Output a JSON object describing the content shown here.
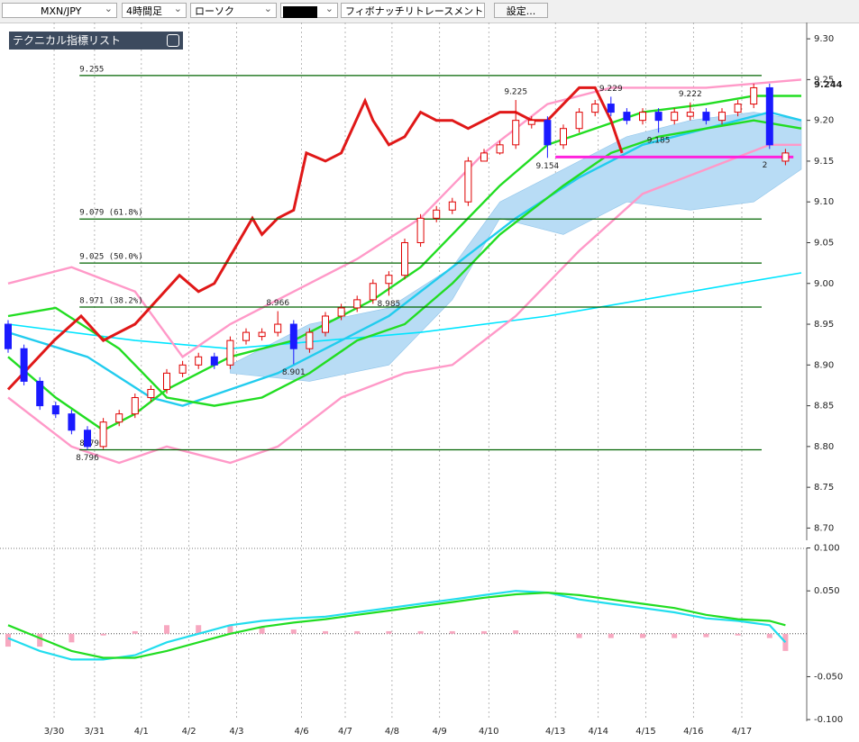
{
  "toolbar": {
    "symbol": "MXN/JPY",
    "timeframe": "4時間足",
    "chart_style": "ローソク",
    "tool": "フィボナッチリトレースメント",
    "settings": "設定..."
  },
  "indicator_panel": {
    "title": "テクニカル指標リスト"
  },
  "chart_data": [
    {
      "type": "candlestick",
      "xticks": [
        {
          "value": 2.9,
          "label": "3/30"
        },
        {
          "value": 5.45,
          "label": "3/31"
        },
        {
          "value": 8.4,
          "label": "4/1"
        },
        {
          "value": 11.4,
          "label": "4/2"
        },
        {
          "value": 14.4,
          "label": "4/3"
        },
        {
          "value": 18.5,
          "label": "4/6"
        },
        {
          "value": 21.25,
          "label": "4/7"
        },
        {
          "value": 24.2,
          "label": "4/8"
        },
        {
          "value": 27.2,
          "label": "4/9"
        },
        {
          "value": 30.3,
          "label": "4/10"
        },
        {
          "value": 34.5,
          "label": "4/13"
        },
        {
          "value": 37.2,
          "label": "4/14"
        },
        {
          "value": 40.2,
          "label": "4/15"
        },
        {
          "value": 43.2,
          "label": "4/16"
        },
        {
          "value": 46.25,
          "label": "4/17"
        }
      ],
      "ylim": [
        8.685,
        9.32
      ],
      "yticks": [
        {
          "value": 9.3,
          "label": "9.30"
        },
        9.25,
        {
          "value": 9.2,
          "label": "9.20"
        },
        9.15,
        {
          "value": 9.1,
          "label": "9.10"
        },
        9.05,
        {
          "value": 9.0,
          "label": "9.00"
        },
        8.95,
        {
          "value": 8.9,
          "label": "8.90"
        },
        8.85,
        {
          "value": 8.8,
          "label": "8.80"
        },
        8.75,
        {
          "value": 8.7,
          "label": "8.70"
        }
      ],
      "last_price": 9.244,
      "up_color": "#e00000",
      "down_color": "#1a1aff",
      "open": [
        8.95,
        8.92,
        8.88,
        8.85,
        8.84,
        8.82,
        8.8,
        8.83,
        8.84,
        8.86,
        8.87,
        8.89,
        8.9,
        8.91,
        8.9,
        8.93,
        8.935,
        8.94,
        8.95,
        8.92,
        8.94,
        8.96,
        8.97,
        8.98,
        9.0,
        9.01,
        9.05,
        9.08,
        9.09,
        9.1,
        9.15,
        9.16,
        9.17,
        9.195,
        9.2,
        9.17,
        9.19,
        9.21,
        9.22,
        9.21,
        9.2,
        9.21,
        9.2,
        9.205,
        9.21,
        9.2,
        9.21,
        9.22,
        9.24,
        9.15
      ],
      "high": [
        8.955,
        8.925,
        8.885,
        8.855,
        8.845,
        8.825,
        8.835,
        8.845,
        8.865,
        8.875,
        8.895,
        8.905,
        8.915,
        8.915,
        8.935,
        8.945,
        8.945,
        8.966,
        8.955,
        8.945,
        8.965,
        8.975,
        8.985,
        9.005,
        9.015,
        9.055,
        9.085,
        9.095,
        9.105,
        9.155,
        9.165,
        9.175,
        9.225,
        9.205,
        9.205,
        9.195,
        9.215,
        9.225,
        9.229,
        9.215,
        9.215,
        9.215,
        9.215,
        9.222,
        9.215,
        9.215,
        9.225,
        9.245,
        9.245,
        9.165
      ],
      "low": [
        8.915,
        8.875,
        8.845,
        8.835,
        8.815,
        8.796,
        8.797,
        8.825,
        8.835,
        8.855,
        8.865,
        8.885,
        8.895,
        8.895,
        8.895,
        8.925,
        8.93,
        8.935,
        8.901,
        8.915,
        8.935,
        8.955,
        8.965,
        8.975,
        8.985,
        9.005,
        9.045,
        9.075,
        9.085,
        9.095,
        9.155,
        9.158,
        9.165,
        9.19,
        9.154,
        9.165,
        9.185,
        9.205,
        9.205,
        9.195,
        9.195,
        9.185,
        9.195,
        9.2,
        9.195,
        9.195,
        9.205,
        9.215,
        9.165,
        9.145
      ],
      "close": [
        8.92,
        8.88,
        8.85,
        8.84,
        8.82,
        8.8,
        8.83,
        8.84,
        8.86,
        8.87,
        8.89,
        8.9,
        8.91,
        8.9,
        8.93,
        8.94,
        8.94,
        8.95,
        8.92,
        8.94,
        8.96,
        8.97,
        8.98,
        9.0,
        9.01,
        9.05,
        9.08,
        9.09,
        9.1,
        9.15,
        9.16,
        9.17,
        9.2,
        9.2,
        9.17,
        9.19,
        9.21,
        9.22,
        9.21,
        9.2,
        9.21,
        9.2,
        9.21,
        9.21,
        9.2,
        9.21,
        9.22,
        9.24,
        9.17,
        9.16
      ],
      "cloud": {
        "color": "#b8dcf5",
        "x": [
          14,
          19,
          24,
          28,
          31,
          35,
          39,
          43,
          47,
          50
        ],
        "upper": [
          8.9,
          8.95,
          8.97,
          9.02,
          9.1,
          9.14,
          9.18,
          9.2,
          9.21,
          9.2
        ],
        "lower": [
          8.89,
          8.88,
          8.9,
          8.98,
          9.08,
          9.06,
          9.1,
          9.09,
          9.1,
          9.14
        ]
      },
      "series": [
        {
          "color": "#00e5ff",
          "x": [
            0,
            8,
            14,
            20,
            26,
            34,
            40,
            46,
            50
          ],
          "values": [
            8.95,
            8.93,
            8.92,
            8.93,
            8.94,
            8.96,
            8.98,
            9.0,
            9.013
          ]
        },
        {
          "color": "#ff99c8",
          "x": [
            0,
            4,
            8,
            11,
            14,
            18,
            22,
            26,
            30,
            34,
            38,
            44,
            50
          ],
          "values": [
            9.0,
            9.02,
            8.99,
            8.91,
            8.95,
            8.99,
            9.03,
            9.08,
            9.16,
            9.22,
            9.24,
            9.24,
            9.25
          ]
        },
        {
          "color": "#ff99c8",
          "x": [
            0,
            4,
            7,
            10,
            14,
            17,
            21,
            25,
            28,
            32,
            36,
            40,
            44,
            48,
            50
          ],
          "values": [
            8.86,
            8.8,
            8.78,
            8.8,
            8.78,
            8.8,
            8.86,
            8.89,
            8.9,
            8.96,
            9.04,
            9.11,
            9.14,
            9.17,
            9.17
          ]
        },
        {
          "color": "#22ccee",
          "x": [
            0,
            5,
            9,
            11,
            14,
            17,
            20,
            24,
            28,
            32,
            36,
            40,
            44,
            48,
            50
          ],
          "values": [
            8.94,
            8.91,
            8.86,
            8.85,
            8.87,
            8.89,
            8.92,
            8.96,
            9.02,
            9.08,
            9.13,
            9.17,
            9.19,
            9.21,
            9.2
          ]
        },
        {
          "color": "#22dd22",
          "x": [
            0,
            3,
            7,
            10,
            13,
            16,
            19,
            22,
            25,
            28,
            31,
            35,
            38,
            41,
            44,
            47,
            50
          ],
          "values": [
            8.96,
            8.97,
            8.92,
            8.86,
            8.85,
            8.86,
            8.89,
            8.93,
            8.95,
            9.0,
            9.06,
            9.12,
            9.16,
            9.18,
            9.19,
            9.2,
            9.19
          ]
        },
        {
          "color": "#22dd22",
          "x": [
            0,
            3,
            6,
            8,
            10,
            12,
            14,
            16,
            18,
            20,
            23,
            26,
            28,
            31,
            34,
            37,
            40,
            44,
            47,
            50
          ],
          "values": [
            8.91,
            8.86,
            8.82,
            8.84,
            8.87,
            8.89,
            8.91,
            8.92,
            8.93,
            8.95,
            8.98,
            9.02,
            9.06,
            9.12,
            9.17,
            9.19,
            9.21,
            9.22,
            9.23,
            9.23
          ]
        },
        {
          "color": "#e01818",
          "x": [
            0,
            2.9,
            4.6,
            6,
            8,
            10.8,
            12,
            13,
            15.4,
            16,
            17,
            18,
            18.8,
            20,
            21,
            22.5,
            23,
            24,
            25,
            26,
            27,
            28,
            29,
            30,
            31,
            32,
            33,
            34,
            35,
            36,
            37,
            38,
            38.7
          ],
          "values": [
            8.87,
            8.93,
            8.96,
            8.93,
            8.95,
            9.01,
            8.99,
            9.0,
            9.08,
            9.06,
            9.08,
            9.09,
            9.16,
            9.15,
            9.16,
            9.224,
            9.2,
            9.17,
            9.18,
            9.21,
            9.2,
            9.2,
            9.19,
            9.2,
            9.21,
            9.21,
            9.2,
            9.2,
            9.22,
            9.24,
            9.24,
            9.2,
            9.16
          ]
        }
      ],
      "fib_color": "#006400",
      "fib_levels": [
        {
          "value": 9.255
        },
        {
          "value": 9.079,
          "label": "9.079 (61.8%)"
        },
        {
          "value": 9.025,
          "label": "9.025 (50.0%)"
        },
        {
          "value": 8.971,
          "label": "8.971 (38.2%)"
        },
        {
          "value": 8.796
        }
      ],
      "support_line": {
        "value": 9.155,
        "color": "#ff22dd",
        "label": "2"
      },
      "annotations": [
        {
          "x": 32,
          "value": 9.225,
          "position": "above"
        },
        {
          "x": 38,
          "value": 9.229,
          "position": "above"
        },
        {
          "x": 43,
          "value": 9.222,
          "position": "above"
        },
        {
          "x": 41,
          "value": 9.185,
          "position": "below"
        },
        {
          "x": 34,
          "value": 9.154,
          "position": "below"
        },
        {
          "x": 17,
          "value": 8.966,
          "position": "above"
        },
        {
          "x": 18,
          "value": 8.901,
          "position": "below"
        },
        {
          "x": 24,
          "value": 8.985,
          "position": "below"
        },
        {
          "x": 5,
          "value": 8.796,
          "position": "below"
        }
      ]
    },
    {
      "type": "macd",
      "ylim": [
        -0.102,
        0.11
      ],
      "yticks": [
        {
          "value": 0.1,
          "label": "0.100"
        },
        {
          "value": 0.05,
          "label": "0.050"
        },
        {
          "value": -0.05,
          "label": "-0.050"
        },
        {
          "value": -0.1,
          "label": "-0.100"
        }
      ],
      "x": [
        0,
        2,
        4,
        6,
        8,
        10,
        12,
        14,
        16,
        18,
        20,
        22,
        24,
        26,
        28,
        30,
        32,
        34,
        36,
        38,
        40,
        42,
        44,
        46,
        48,
        49
      ],
      "histogram": {
        "color": "#f7a8c0",
        "values": [
          -0.015,
          -0.015,
          -0.01,
          -0.002,
          0.003,
          0.01,
          0.01,
          0.01,
          0.007,
          0.005,
          0.003,
          0.003,
          0.003,
          0.003,
          0.003,
          0.003,
          0.004,
          0,
          -0.005,
          -0.005,
          -0.005,
          -0.005,
          -0.004,
          -0.002,
          -0.005,
          -0.02
        ]
      },
      "series": [
        {
          "color": "#22ddee",
          "values": [
            -0.005,
            -0.02,
            -0.03,
            -0.03,
            -0.025,
            -0.01,
            0,
            0.01,
            0.015,
            0.018,
            0.02,
            0.025,
            0.03,
            0.035,
            0.04,
            0.045,
            0.05,
            0.048,
            0.04,
            0.035,
            0.03,
            0.025,
            0.018,
            0.015,
            0.01,
            -0.01
          ]
        },
        {
          "color": "#22dd22",
          "values": [
            0.01,
            -0.005,
            -0.02,
            -0.028,
            -0.028,
            -0.02,
            -0.01,
            0,
            0.008,
            0.013,
            0.017,
            0.022,
            0.027,
            0.032,
            0.037,
            0.042,
            0.046,
            0.048,
            0.045,
            0.04,
            0.035,
            0.03,
            0.022,
            0.017,
            0.015,
            0.01
          ]
        }
      ]
    }
  ]
}
